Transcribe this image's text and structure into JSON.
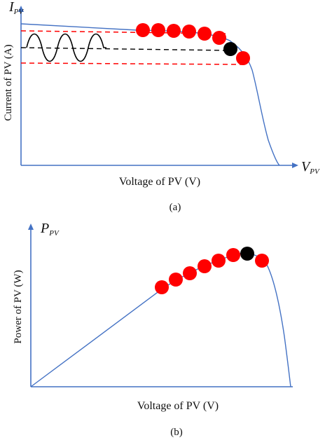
{
  "panel_a": {
    "y_symbol": "I",
    "y_symbol_sub": "PV",
    "x_symbol": "V",
    "x_symbol_sub": "PV",
    "ylabel": "Current of PV (A)",
    "xlabel": "Voltage of PV (V)",
    "caption": "(a)"
  },
  "panel_b": {
    "y_symbol": "P",
    "y_symbol_sub": "PV",
    "ylabel": "Power of PV (W)",
    "xlabel": "Voltage of PV (V)",
    "caption": "(b)"
  },
  "colors": {
    "axis": "#4472c4",
    "curve": "#4472c4",
    "operating_point": "#ff0000",
    "mpp_point": "#000000",
    "ripple_band": "#ff0000",
    "reference_line": "#000000"
  }
}
